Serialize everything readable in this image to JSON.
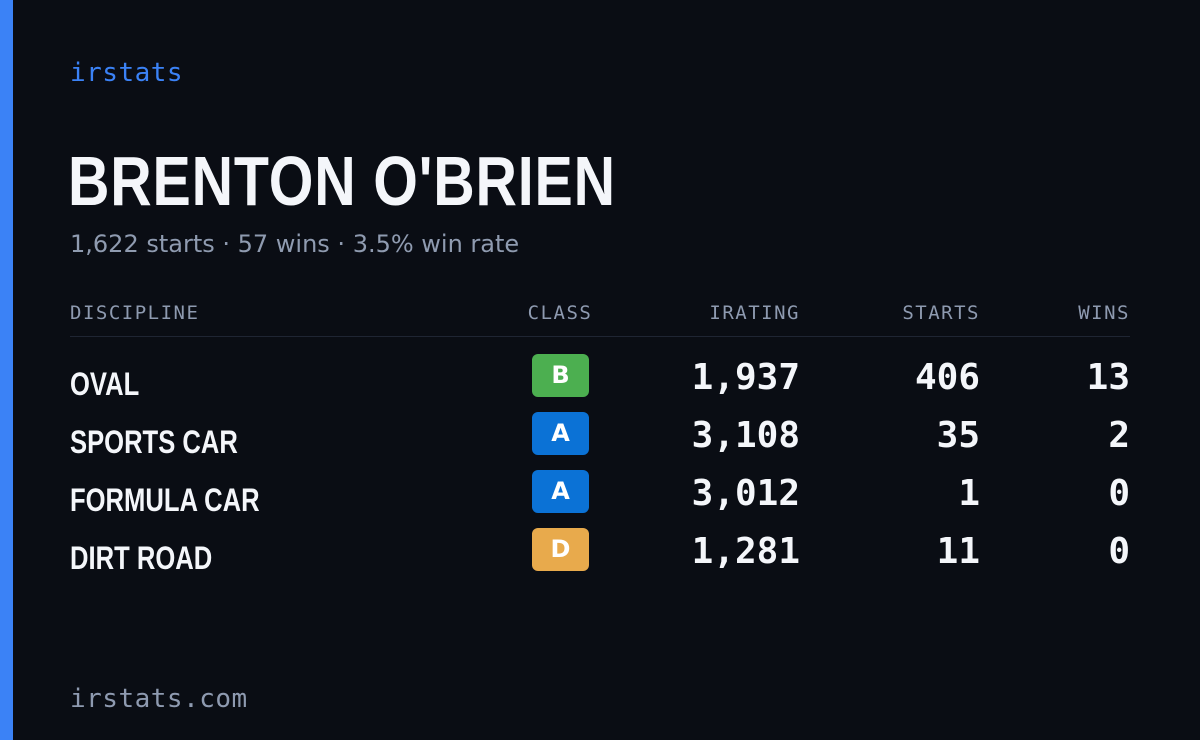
{
  "colors": {
    "accent": "#3b82f6",
    "background": "#0a0d14",
    "class_B": "#4caf50",
    "class_A": "#0b72d6",
    "class_D": "#e8aa4c"
  },
  "brand": "irstats",
  "driver": {
    "name": "BRENTON O'BRIEN",
    "summary": "1,622 starts · 57 wins · 3.5% win rate"
  },
  "table": {
    "headers": {
      "discipline": "DISCIPLINE",
      "class": "CLASS",
      "irating": "IRATING",
      "starts": "STARTS",
      "wins": "WINS"
    },
    "rows": [
      {
        "discipline": "OVAL",
        "class": "B",
        "class_color": "#4caf50",
        "irating": "1,937",
        "starts": "406",
        "wins": "13"
      },
      {
        "discipline": "SPORTS CAR",
        "class": "A",
        "class_color": "#0b72d6",
        "irating": "3,108",
        "starts": "35",
        "wins": "2"
      },
      {
        "discipline": "FORMULA CAR",
        "class": "A",
        "class_color": "#0b72d6",
        "irating": "3,012",
        "starts": "1",
        "wins": "0"
      },
      {
        "discipline": "DIRT ROAD",
        "class": "D",
        "class_color": "#e8aa4c",
        "irating": "1,281",
        "starts": "11",
        "wins": "0"
      }
    ]
  },
  "footer": "irstats.com"
}
